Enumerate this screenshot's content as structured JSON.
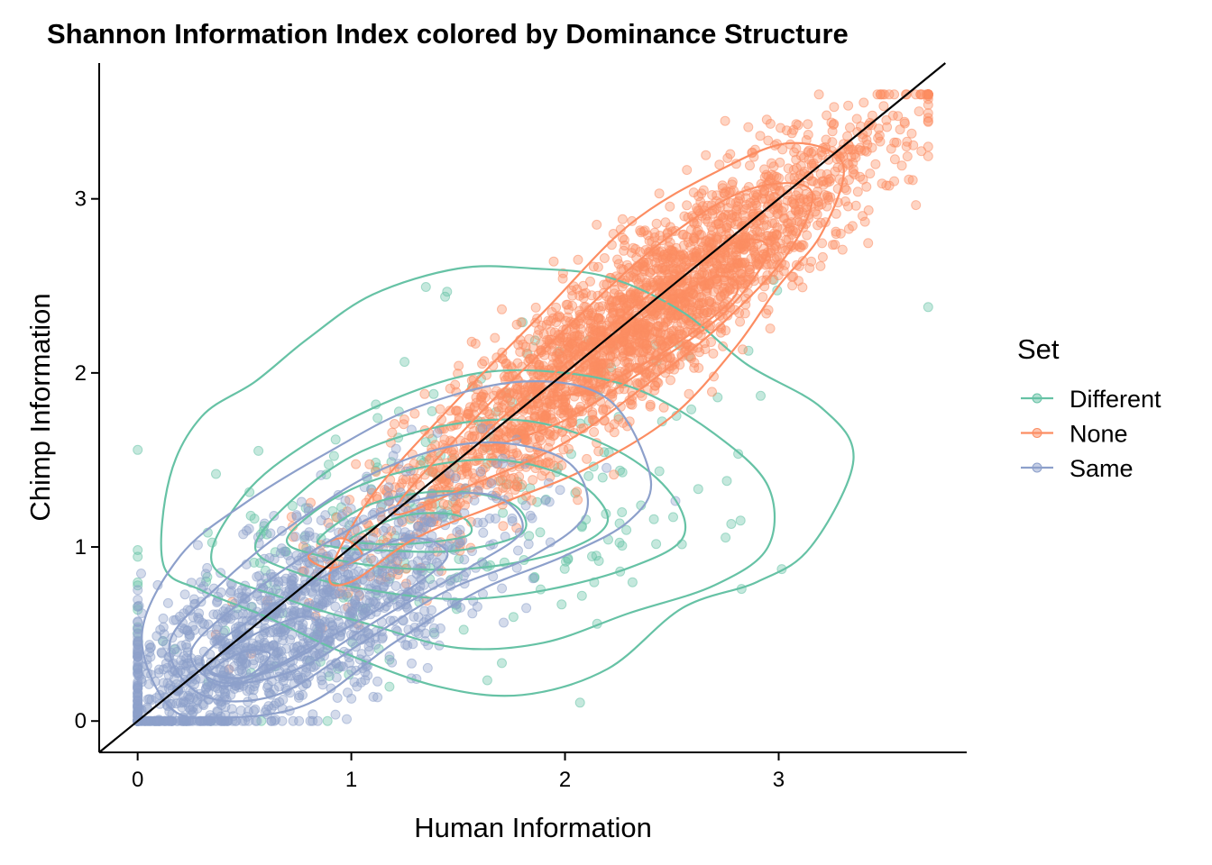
{
  "chart_data": {
    "type": "scatter",
    "title": "Shannon Information Index colored by Dominance Structure",
    "xlabel": "Human Information",
    "ylabel": "Chimp Information",
    "xlim": [
      -0.18,
      3.88
    ],
    "ylim": [
      -0.18,
      3.78
    ],
    "xticks": [
      0,
      1,
      2,
      3
    ],
    "yticks": [
      0,
      1,
      2,
      3
    ],
    "reference_line": "y = x",
    "grid": false,
    "legend": {
      "title": "Set",
      "position": "right"
    },
    "series": [
      {
        "name": "Different",
        "color": "#66C2A5",
        "density_center": [
          1.45,
          1.2
        ],
        "spread": [
          0.75,
          0.55
        ],
        "correlation": 0.45,
        "contours": [
          [
            [
              0.12,
              0.9
            ],
            [
              0.15,
              1.4
            ],
            [
              0.3,
              1.75
            ],
            [
              0.55,
              1.95
            ],
            [
              0.8,
              2.2
            ],
            [
              1.1,
              2.45
            ],
            [
              1.5,
              2.6
            ],
            [
              1.85,
              2.6
            ],
            [
              2.2,
              2.55
            ],
            [
              2.55,
              2.35
            ],
            [
              2.85,
              2.05
            ],
            [
              3.2,
              1.8
            ],
            [
              3.35,
              1.5
            ],
            [
              3.15,
              1.0
            ],
            [
              2.9,
              0.8
            ],
            [
              2.55,
              0.65
            ],
            [
              2.2,
              0.3
            ],
            [
              1.8,
              0.15
            ],
            [
              1.4,
              0.2
            ],
            [
              0.95,
              0.4
            ],
            [
              0.6,
              0.6
            ],
            [
              0.3,
              0.75
            ]
          ],
          [
            [
              0.35,
              0.9
            ],
            [
              0.5,
              1.3
            ],
            [
              0.8,
              1.6
            ],
            [
              1.2,
              1.85
            ],
            [
              1.6,
              2.0
            ],
            [
              2.0,
              2.0
            ],
            [
              2.35,
              1.9
            ],
            [
              2.7,
              1.65
            ],
            [
              2.95,
              1.35
            ],
            [
              2.95,
              1.0
            ],
            [
              2.7,
              0.78
            ],
            [
              2.3,
              0.62
            ],
            [
              1.9,
              0.45
            ],
            [
              1.5,
              0.42
            ],
            [
              1.1,
              0.55
            ],
            [
              0.7,
              0.7
            ]
          ],
          [
            [
              0.55,
              1.0
            ],
            [
              0.75,
              1.3
            ],
            [
              1.05,
              1.55
            ],
            [
              1.45,
              1.7
            ],
            [
              1.85,
              1.72
            ],
            [
              2.25,
              1.55
            ],
            [
              2.5,
              1.3
            ],
            [
              2.55,
              1.05
            ],
            [
              2.3,
              0.88
            ],
            [
              1.9,
              0.75
            ],
            [
              1.5,
              0.7
            ],
            [
              1.1,
              0.75
            ],
            [
              0.75,
              0.85
            ]
          ],
          [
            [
              0.7,
              1.05
            ],
            [
              0.95,
              1.3
            ],
            [
              1.3,
              1.45
            ],
            [
              1.7,
              1.5
            ],
            [
              2.05,
              1.38
            ],
            [
              2.2,
              1.15
            ],
            [
              2.0,
              0.98
            ],
            [
              1.6,
              0.88
            ],
            [
              1.2,
              0.88
            ],
            [
              0.85,
              0.95
            ]
          ],
          [
            [
              0.85,
              1.05
            ],
            [
              1.1,
              1.25
            ],
            [
              1.45,
              1.32
            ],
            [
              1.75,
              1.25
            ],
            [
              1.8,
              1.08
            ],
            [
              1.5,
              0.98
            ],
            [
              1.15,
              0.98
            ],
            [
              0.92,
              1.0
            ]
          ],
          [
            [
              1.0,
              1.05
            ],
            [
              1.25,
              1.18
            ],
            [
              1.5,
              1.18
            ],
            [
              1.55,
              1.07
            ],
            [
              1.3,
              1.02
            ],
            [
              1.08,
              1.02
            ]
          ]
        ]
      },
      {
        "name": "None",
        "color": "#FC8D62",
        "density_center": [
          2.35,
          2.3
        ],
        "spread": [
          0.6,
          0.6
        ],
        "correlation": 0.92,
        "contours": [
          [
            [
              0.9,
              0.85
            ],
            [
              1.1,
              1.3
            ],
            [
              1.5,
              1.85
            ],
            [
              1.9,
              2.35
            ],
            [
              2.3,
              2.85
            ],
            [
              2.7,
              3.15
            ],
            [
              3.05,
              3.32
            ],
            [
              3.3,
              3.2
            ],
            [
              3.2,
              2.8
            ],
            [
              3.0,
              2.5
            ],
            [
              2.8,
              2.15
            ],
            [
              2.5,
              1.75
            ],
            [
              2.1,
              1.45
            ],
            [
              1.7,
              1.25
            ],
            [
              1.3,
              1.05
            ],
            [
              1.0,
              0.8
            ]
          ],
          [
            [
              1.2,
              1.2
            ],
            [
              1.55,
              1.7
            ],
            [
              2.0,
              2.25
            ],
            [
              2.45,
              2.75
            ],
            [
              2.85,
              3.05
            ],
            [
              3.15,
              3.05
            ],
            [
              3.05,
              2.7
            ],
            [
              2.75,
              2.3
            ],
            [
              2.4,
              1.95
            ],
            [
              2.0,
              1.6
            ],
            [
              1.55,
              1.35
            ]
          ],
          [
            [
              1.6,
              1.6
            ],
            [
              2.0,
              2.05
            ],
            [
              2.45,
              2.5
            ],
            [
              2.8,
              2.75
            ],
            [
              2.95,
              2.7
            ],
            [
              2.75,
              2.35
            ],
            [
              2.35,
              2.0
            ],
            [
              1.95,
              1.7
            ]
          ],
          [
            [
              1.95,
              1.9
            ],
            [
              2.35,
              2.3
            ],
            [
              2.7,
              2.55
            ],
            [
              2.8,
              2.45
            ],
            [
              2.5,
              2.15
            ],
            [
              2.15,
              1.92
            ]
          ],
          [
            [
              0.8,
              0.95
            ],
            [
              0.95,
              1.05
            ],
            [
              1.05,
              0.95
            ],
            [
              0.9,
              0.88
            ]
          ]
        ]
      },
      {
        "name": "Same",
        "color": "#8DA0CB",
        "density_center": [
          0.65,
          0.5
        ],
        "spread": [
          0.5,
          0.4
        ],
        "correlation": 0.75,
        "contours": [
          [
            [
              0.02,
              0.5
            ],
            [
              0.2,
              0.95
            ],
            [
              0.5,
              1.25
            ],
            [
              0.9,
              1.55
            ],
            [
              1.3,
              1.8
            ],
            [
              1.8,
              1.95
            ],
            [
              2.2,
              1.85
            ],
            [
              2.4,
              1.4
            ],
            [
              2.3,
              1.15
            ],
            [
              2.0,
              0.95
            ],
            [
              1.6,
              0.75
            ],
            [
              1.2,
              0.45
            ],
            [
              0.8,
              0.1
            ],
            [
              0.4,
              0.02
            ],
            [
              0.15,
              0.08
            ]
          ],
          [
            [
              0.15,
              0.45
            ],
            [
              0.4,
              0.8
            ],
            [
              0.75,
              1.15
            ],
            [
              1.15,
              1.45
            ],
            [
              1.6,
              1.6
            ],
            [
              2.0,
              1.5
            ],
            [
              2.1,
              1.2
            ],
            [
              1.85,
              0.95
            ],
            [
              1.45,
              0.75
            ],
            [
              1.05,
              0.45
            ],
            [
              0.65,
              0.15
            ],
            [
              0.3,
              0.15
            ]
          ],
          [
            [
              0.25,
              0.4
            ],
            [
              0.5,
              0.7
            ],
            [
              0.85,
              1.0
            ],
            [
              1.25,
              1.25
            ],
            [
              1.65,
              1.3
            ],
            [
              1.8,
              1.1
            ],
            [
              1.55,
              0.88
            ],
            [
              1.15,
              0.6
            ],
            [
              0.75,
              0.3
            ],
            [
              0.4,
              0.22
            ]
          ],
          [
            [
              0.3,
              0.35
            ],
            [
              0.55,
              0.6
            ],
            [
              0.9,
              0.85
            ],
            [
              1.25,
              1.05
            ],
            [
              1.45,
              0.95
            ],
            [
              1.2,
              0.7
            ],
            [
              0.85,
              0.45
            ],
            [
              0.5,
              0.25
            ]
          ],
          [
            [
              0.32,
              0.3
            ],
            [
              0.55,
              0.5
            ],
            [
              0.8,
              0.6
            ],
            [
              0.85,
              0.45
            ],
            [
              0.6,
              0.28
            ],
            [
              0.4,
              0.2
            ]
          ],
          [
            [
              0.34,
              0.28
            ],
            [
              0.5,
              0.4
            ],
            [
              0.62,
              0.38
            ],
            [
              0.5,
              0.25
            ]
          ]
        ]
      }
    ]
  }
}
